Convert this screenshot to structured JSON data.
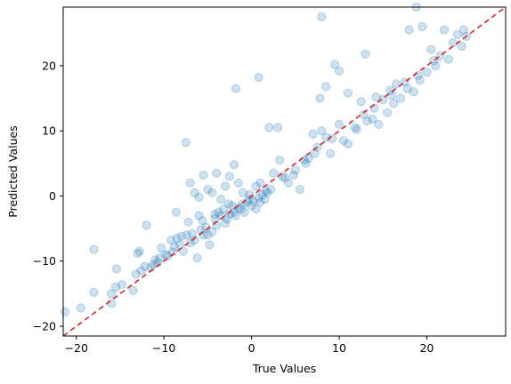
{
  "chart_data": {
    "type": "scatter",
    "title": "",
    "xlabel": "True Values",
    "ylabel": "Predicted Values",
    "xlim": [
      -21.5,
      29
    ],
    "ylim": [
      -21.5,
      29
    ],
    "xticks": [
      -20,
      -10,
      0,
      10,
      20
    ],
    "yticks": [
      -20,
      -10,
      0,
      10,
      20
    ],
    "tick_labels": {
      "x": [
        "−20",
        "−10",
        "0",
        "10",
        "20"
      ],
      "y": [
        "−20",
        "−10",
        "0",
        "10",
        "20"
      ]
    },
    "grid": false,
    "legend": "none",
    "point_color": "#1f77b4",
    "point_alpha": 0.22,
    "reference_line": {
      "style": "dashed",
      "color": "#d62728",
      "from": [
        -21.5,
        -21.5
      ],
      "to": [
        29,
        29
      ]
    },
    "points": [
      [
        -21.3,
        -17.8
      ],
      [
        -19.5,
        -17.2
      ],
      [
        -18.0,
        -14.8
      ],
      [
        -18.0,
        -8.2
      ],
      [
        -16.0,
        -15.0
      ],
      [
        -16.0,
        -16.5
      ],
      [
        -15.5,
        -14.0
      ],
      [
        -15.4,
        -11.2
      ],
      [
        -13.5,
        -14.5
      ],
      [
        -13.2,
        -12.0
      ],
      [
        -12.8,
        -8.5
      ],
      [
        -13.0,
        -8.8
      ],
      [
        -12.2,
        -10.8
      ],
      [
        -12.0,
        -4.5
      ],
      [
        -11.5,
        -11.0
      ],
      [
        -11.0,
        -9.8
      ],
      [
        -10.7,
        -10.2
      ],
      [
        -10.5,
        -9.5
      ],
      [
        -10.3,
        -8.0
      ],
      [
        -9.8,
        -9.0
      ],
      [
        -9.2,
        -6.8
      ],
      [
        -9.0,
        -8.6
      ],
      [
        -8.6,
        -2.5
      ],
      [
        -8.5,
        -6.5
      ],
      [
        -8.2,
        -7.5
      ],
      [
        -8.0,
        -6.2
      ],
      [
        -7.8,
        -8.5
      ],
      [
        -7.5,
        8.2
      ],
      [
        -7.2,
        -4.0
      ],
      [
        -7.0,
        -7.2
      ],
      [
        -6.8,
        -5.8
      ],
      [
        -6.5,
        -6.8
      ],
      [
        -6.2,
        -9.5
      ],
      [
        -6.0,
        -0.2
      ],
      [
        -6.0,
        -3.0
      ],
      [
        -5.8,
        -5.2
      ],
      [
        -5.5,
        -6.0
      ],
      [
        -5.2,
        -4.8
      ],
      [
        -5.0,
        -6.0
      ],
      [
        -4.8,
        -7.5
      ],
      [
        -4.5,
        -5.5
      ],
      [
        -4.2,
        -3.5
      ],
      [
        -4.0,
        -4.5
      ],
      [
        -3.8,
        -2.5
      ],
      [
        -3.5,
        -3.0
      ],
      [
        -3.2,
        -2.0
      ],
      [
        -3.0,
        -4.2
      ],
      [
        -2.8,
        -3.5
      ],
      [
        -2.5,
        -2.8
      ],
      [
        -2.2,
        -1.5
      ],
      [
        -2.0,
        -2.5
      ],
      [
        -1.8,
        -3.0
      ],
      [
        -1.5,
        -1.8
      ],
      [
        -1.2,
        -2.0
      ],
      [
        -1.0,
        -1.2
      ],
      [
        -0.8,
        -2.5
      ],
      [
        -0.5,
        -1.0
      ],
      [
        -0.3,
        -0.5
      ],
      [
        0.0,
        -1.5
      ],
      [
        0.2,
        -0.8
      ],
      [
        0.5,
        -2.0
      ],
      [
        0.8,
        -0.3
      ],
      [
        1.0,
        -1.0
      ],
      [
        1.2,
        0.2
      ],
      [
        1.5,
        -0.5
      ],
      [
        1.8,
        0.5
      ],
      [
        -5.5,
        3.2
      ],
      [
        -4.0,
        3.5
      ],
      [
        -2.5,
        3.0
      ],
      [
        -2.0,
        4.8
      ],
      [
        -1.5,
        2.0
      ],
      [
        -1.0,
        0.5
      ],
      [
        0.5,
        1.5
      ],
      [
        1.0,
        2.0
      ],
      [
        -4.5,
        0.5
      ],
      [
        -3.5,
        -0.5
      ],
      [
        -6.5,
        0.5
      ],
      [
        -7.0,
        2.0
      ],
      [
        -5.0,
        1.0
      ],
      [
        -3.0,
        1.5
      ],
      [
        -1.8,
        16.5
      ],
      [
        0.8,
        18.2
      ],
      [
        2.0,
        10.5
      ],
      [
        3.0,
        10.5
      ],
      [
        3.2,
        5.5
      ],
      [
        2.5,
        3.5
      ],
      [
        3.5,
        3.0
      ],
      [
        4.2,
        2.0
      ],
      [
        5.0,
        4.0
      ],
      [
        5.5,
        1.0
      ],
      [
        6.0,
        5.5
      ],
      [
        6.5,
        5.8
      ],
      [
        7.0,
        9.5
      ],
      [
        7.5,
        7.5
      ],
      [
        8.0,
        10.0
      ],
      [
        8.5,
        9.0
      ],
      [
        9.0,
        6.5
      ],
      [
        7.8,
        15.0
      ],
      [
        8.5,
        16.8
      ],
      [
        9.5,
        20.2
      ],
      [
        10.0,
        19.2
      ],
      [
        11.0,
        15.8
      ],
      [
        12.0,
        10.2
      ],
      [
        12.5,
        14.5
      ],
      [
        13.0,
        21.8
      ],
      [
        10.0,
        11.0
      ],
      [
        11.0,
        8.0
      ],
      [
        11.8,
        10.5
      ],
      [
        13.2,
        11.5
      ],
      [
        14.0,
        13.5
      ],
      [
        14.5,
        11.0
      ],
      [
        15.0,
        14.8
      ],
      [
        15.5,
        12.8
      ],
      [
        16.0,
        15.5
      ],
      [
        16.5,
        17.2
      ],
      [
        17.0,
        15.0
      ],
      [
        17.5,
        17.5
      ],
      [
        18.0,
        25.5
      ],
      [
        18.5,
        16.0
      ],
      [
        19.0,
        18.5
      ],
      [
        19.5,
        26.0
      ],
      [
        20.0,
        19.0
      ],
      [
        20.5,
        22.5
      ],
      [
        21.0,
        20.0
      ],
      [
        21.5,
        21.5
      ],
      [
        22.0,
        25.5
      ],
      [
        22.5,
        21.0
      ],
      [
        23.0,
        23.5
      ],
      [
        23.5,
        24.8
      ],
      [
        24.0,
        23.0
      ],
      [
        24.2,
        25.5
      ],
      [
        24.5,
        24.5
      ],
      [
        8.0,
        27.5
      ],
      [
        18.8,
        29.0
      ],
      [
        13.8,
        11.8
      ],
      [
        12.8,
        12.5
      ],
      [
        16.2,
        14.2
      ],
      [
        17.8,
        16.5
      ],
      [
        19.2,
        17.8
      ],
      [
        20.8,
        20.8
      ],
      [
        15.8,
        16.2
      ],
      [
        14.2,
        15.2
      ],
      [
        10.5,
        8.5
      ],
      [
        9.2,
        8.8
      ],
      [
        6.2,
        5.0
      ],
      [
        7.2,
        6.5
      ],
      [
        4.8,
        3.2
      ],
      [
        3.8,
        2.8
      ],
      [
        2.2,
        1.0
      ],
      [
        1.6,
        0.8
      ],
      [
        -0.2,
        0.2
      ],
      [
        -2.6,
        -1.2
      ],
      [
        -4.2,
        -2.8
      ],
      [
        -5.6,
        -3.8
      ],
      [
        -7.4,
        -6.0
      ],
      [
        -8.8,
        -7.8
      ],
      [
        -9.6,
        -9.2
      ],
      [
        -11.2,
        -10.5
      ],
      [
        -12.6,
        -11.5
      ],
      [
        -14.8,
        -13.6
      ]
    ]
  }
}
